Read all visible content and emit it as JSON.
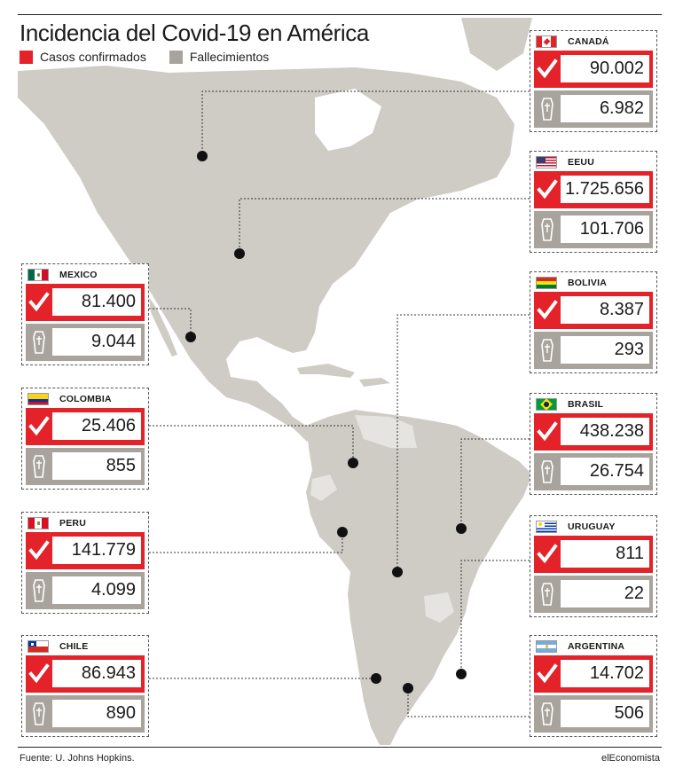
{
  "title": "Incidencia del Covid-19 en América",
  "legend": {
    "cases_label": "Casos confirmados",
    "deaths_label": "Fallecimientos",
    "cases_color": "#e3222a",
    "deaths_color": "#a8a39c"
  },
  "footer": {
    "source": "Fuente: U.  Johns Hopkins.",
    "brand": "elEconomista"
  },
  "icons": {
    "cases": "checkmark-icon",
    "deaths": "coffin-icon"
  },
  "countries": {
    "canada": {
      "name": "CANADÁ",
      "cases": "90.002",
      "deaths": "6.982"
    },
    "eeuu": {
      "name": "EEUU",
      "cases": "1.725.656",
      "deaths": "101.706"
    },
    "mexico": {
      "name": "MEXICO",
      "cases": "81.400",
      "deaths": "9.044"
    },
    "bolivia": {
      "name": "BOLIVIA",
      "cases": "8.387",
      "deaths": "293"
    },
    "colombia": {
      "name": "COLOMBIA",
      "cases": "25.406",
      "deaths": "855"
    },
    "brasil": {
      "name": "BRASIL",
      "cases": "438.238",
      "deaths": "26.754"
    },
    "peru": {
      "name": "PERU",
      "cases": "141.779",
      "deaths": "4.099"
    },
    "uruguay": {
      "name": "URUGUAY",
      "cases": "811",
      "deaths": "22"
    },
    "chile": {
      "name": "CHILE",
      "cases": "86.943",
      "deaths": "890"
    },
    "argentina": {
      "name": "ARGENTINA",
      "cases": "14.702",
      "deaths": "506"
    }
  }
}
